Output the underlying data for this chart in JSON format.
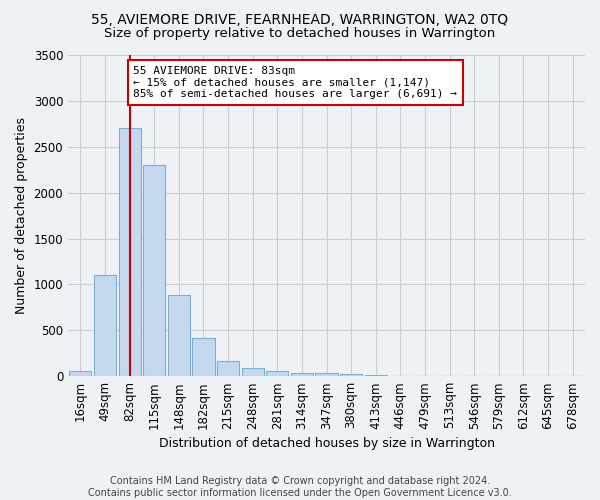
{
  "title": "55, AVIEMORE DRIVE, FEARNHEAD, WARRINGTON, WA2 0TQ",
  "subtitle": "Size of property relative to detached houses in Warrington",
  "xlabel": "Distribution of detached houses by size in Warrington",
  "ylabel": "Number of detached properties",
  "bar_categories": [
    "16sqm",
    "49sqm",
    "82sqm",
    "115sqm",
    "148sqm",
    "182sqm",
    "215sqm",
    "248sqm",
    "281sqm",
    "314sqm",
    "347sqm",
    "380sqm",
    "413sqm",
    "446sqm",
    "479sqm",
    "513sqm",
    "546sqm",
    "579sqm",
    "612sqm",
    "645sqm",
    "678sqm"
  ],
  "bar_values": [
    60,
    1100,
    2700,
    2300,
    880,
    420,
    160,
    90,
    55,
    40,
    30,
    20,
    10,
    5,
    3,
    2,
    1,
    1,
    0,
    0,
    0
  ],
  "bar_color": "#c5d8ef",
  "bar_edge_color": "#7bafd4",
  "vline_x": 2,
  "vline_color": "#cc0000",
  "annotation_text": "55 AVIEMORE DRIVE: 83sqm\n← 15% of detached houses are smaller (1,147)\n85% of semi-detached houses are larger (6,691) →",
  "annotation_box_color": "white",
  "annotation_box_edge": "#cc0000",
  "ylim": [
    0,
    3500
  ],
  "yticks": [
    0,
    500,
    1000,
    1500,
    2000,
    2500,
    3000,
    3500
  ],
  "bg_color": "#eef2f7",
  "plot_bg_color": "#eef2f7",
  "grid_color": "#c8cdd6",
  "footer_text": "Contains HM Land Registry data © Crown copyright and database right 2024.\nContains public sector information licensed under the Open Government Licence v3.0.",
  "title_fontsize": 10,
  "subtitle_fontsize": 9.5,
  "axis_label_fontsize": 9,
  "tick_fontsize": 8.5,
  "footer_fontsize": 7
}
